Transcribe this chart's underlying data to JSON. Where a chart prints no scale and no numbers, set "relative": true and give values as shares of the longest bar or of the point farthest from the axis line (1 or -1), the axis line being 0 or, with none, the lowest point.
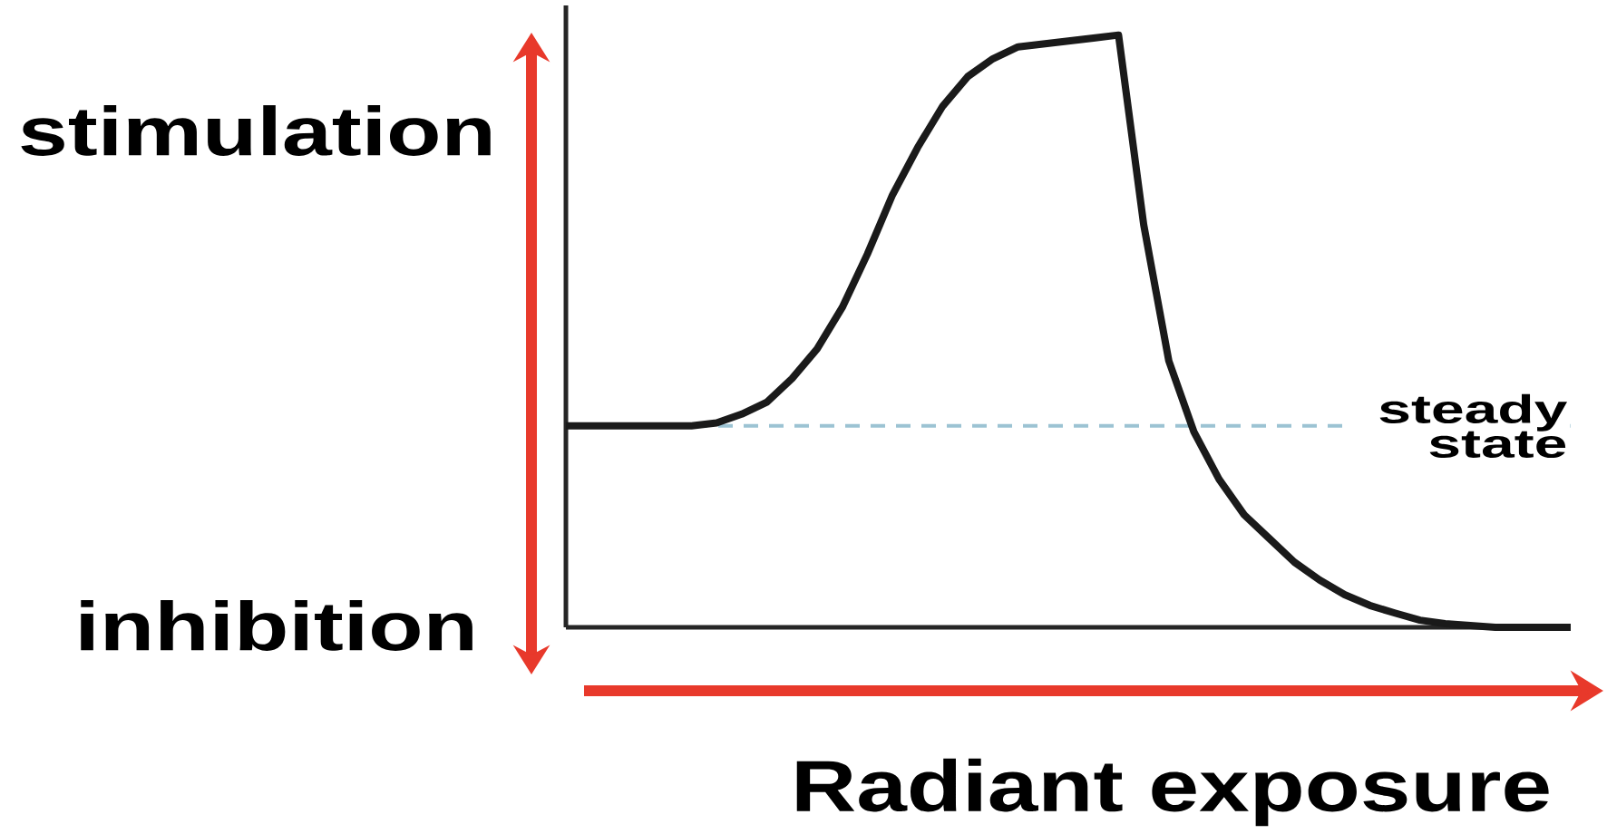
{
  "chart_data": {
    "type": "line",
    "relative": true,
    "color": "#1a1a1a",
    "xlabel": "Radiant exposure",
    "annotations": [
      "stimulation",
      "inhibition"
    ],
    "ref_lines": [
      {
        "axis": "y",
        "value": 0.34,
        "label": "steady state",
        "color": "#9cc3d3",
        "line_style": "dashed"
      }
    ],
    "categories": [
      null,
      null,
      null,
      null,
      null,
      null,
      null,
      null,
      null,
      null,
      null,
      null,
      null,
      null,
      null,
      null,
      null,
      null,
      null,
      null,
      null,
      null,
      null,
      null,
      null,
      null,
      null,
      null,
      null,
      null,
      null,
      null,
      null,
      null,
      null,
      null,
      null,
      null,
      null,
      null,
      null
    ],
    "values": [
      0.34,
      0.34,
      0.34,
      0.34,
      0.34,
      0.34,
      0.345,
      0.36,
      0.38,
      0.42,
      0.47,
      0.54,
      0.63,
      0.73,
      0.81,
      0.88,
      0.93,
      0.96,
      0.98,
      0.985,
      0.99,
      0.995,
      1,
      0.68,
      0.45,
      0.33,
      0.25,
      0.19,
      0.15,
      0.11,
      0.08,
      0.055,
      0.037,
      0.024,
      0.012,
      0.006,
      0.003,
      0,
      0,
      0,
      0
    ]
  }
}
